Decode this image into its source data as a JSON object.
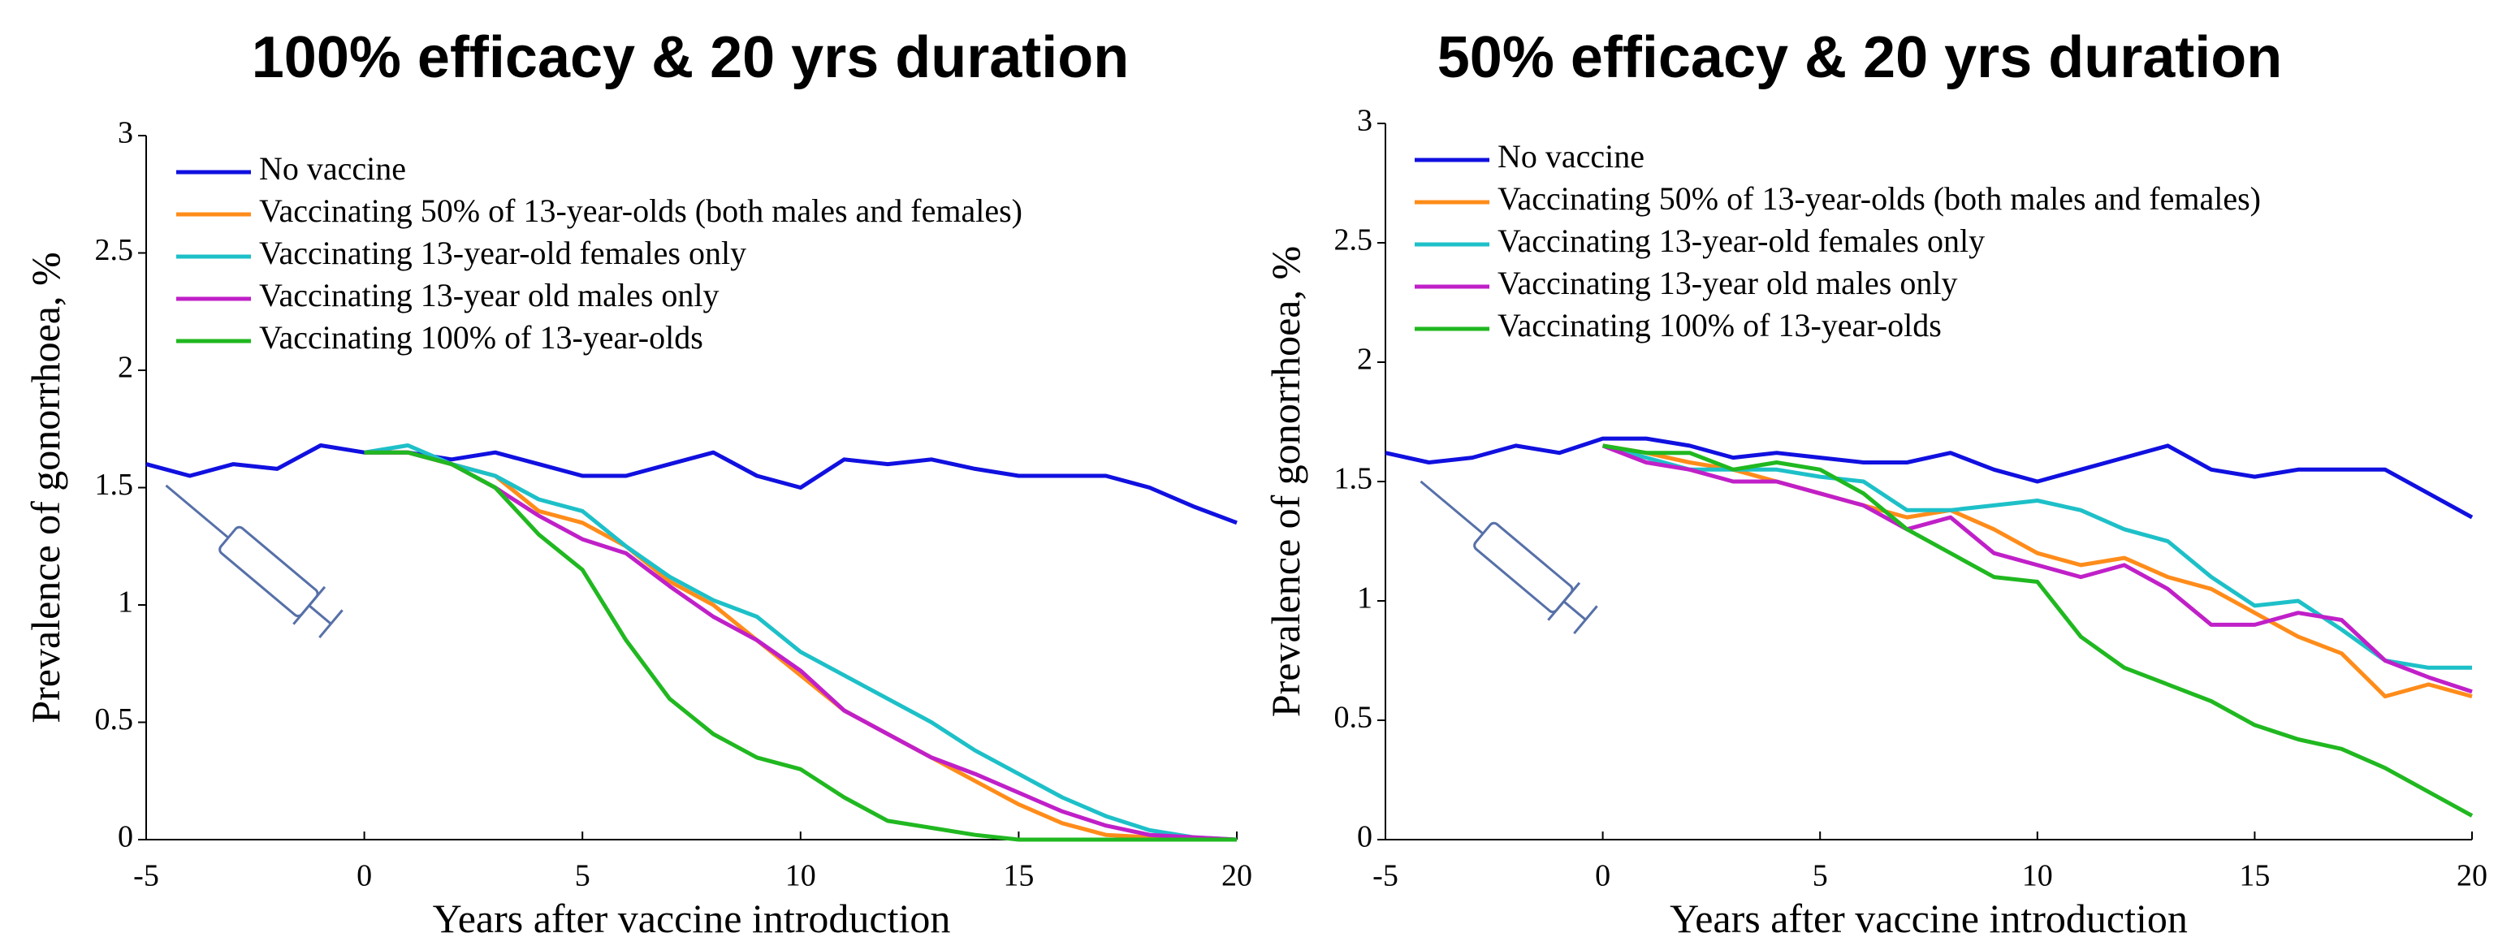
{
  "chart_data": [
    {
      "type": "line",
      "title": "100% efficacy & 20 yrs duration",
      "x_label": "Years after vaccine introduction",
      "y_label": "Prevalence of gonorrhoea, %",
      "x": [
        -5,
        -4,
        -3,
        -2,
        -1,
        0,
        1,
        2,
        3,
        4,
        5,
        6,
        7,
        8,
        9,
        10,
        11,
        12,
        13,
        14,
        15,
        16,
        17,
        18,
        19,
        20
      ],
      "xlim": [
        -5,
        20
      ],
      "xticks": [
        -5,
        0,
        5,
        10,
        15,
        20
      ],
      "ylim": [
        0,
        3
      ],
      "yticks": [
        0,
        0.5,
        1,
        1.5,
        2,
        2.5,
        3
      ],
      "legend": "upper left",
      "series": [
        {
          "name": "No vaccine",
          "color": "#1010e0",
          "values": [
            1.6,
            1.55,
            1.6,
            1.58,
            1.68,
            1.65,
            1.65,
            1.62,
            1.65,
            1.6,
            1.55,
            1.55,
            1.6,
            1.65,
            1.55,
            1.5,
            1.62,
            1.6,
            1.62,
            1.58,
            1.55,
            1.55,
            1.55,
            1.5,
            1.42,
            1.35
          ]
        },
        {
          "name": "Vaccinating 50% of 13-year-olds (both males and females)",
          "color": "#ff8c1a",
          "values": [
            null,
            null,
            null,
            null,
            null,
            1.65,
            1.65,
            1.6,
            1.55,
            1.4,
            1.35,
            1.25,
            1.1,
            1.0,
            0.85,
            0.7,
            0.55,
            0.45,
            0.35,
            0.25,
            0.15,
            0.07,
            0.02,
            0.01,
            0,
            0
          ]
        },
        {
          "name": "Vaccinating 13-year-old females only",
          "color": "#1ec0c8",
          "values": [
            null,
            null,
            null,
            null,
            null,
            1.65,
            1.68,
            1.6,
            1.55,
            1.45,
            1.4,
            1.25,
            1.12,
            1.02,
            0.95,
            0.8,
            0.7,
            0.6,
            0.5,
            0.38,
            0.28,
            0.18,
            0.1,
            0.04,
            0.01,
            0
          ]
        },
        {
          "name": "Vaccinating 13-year old males only",
          "color": "#c020c8",
          "values": [
            null,
            null,
            null,
            null,
            null,
            1.65,
            1.65,
            1.6,
            1.5,
            1.38,
            1.28,
            1.22,
            1.08,
            0.95,
            0.85,
            0.72,
            0.55,
            0.45,
            0.35,
            0.28,
            0.2,
            0.12,
            0.06,
            0.02,
            0.01,
            0
          ]
        },
        {
          "name": "Vaccinating 100% of 13-year-olds",
          "color": "#20b820",
          "values": [
            null,
            null,
            null,
            null,
            null,
            1.65,
            1.65,
            1.6,
            1.5,
            1.3,
            1.15,
            0.85,
            0.6,
            0.45,
            0.35,
            0.3,
            0.18,
            0.08,
            0.05,
            0.02,
            0,
            0,
            0,
            0,
            0,
            0
          ]
        }
      ]
    },
    {
      "type": "line",
      "title": "50% efficacy & 20 yrs duration",
      "x_label": "Years after vaccine introduction",
      "y_label": "Prevalence of gonorrhoea, %",
      "x": [
        -5,
        -4,
        -3,
        -2,
        -1,
        0,
        1,
        2,
        3,
        4,
        5,
        6,
        7,
        8,
        9,
        10,
        11,
        12,
        13,
        14,
        15,
        16,
        17,
        18,
        19,
        20
      ],
      "xlim": [
        -5,
        20
      ],
      "xticks": [
        -5,
        0,
        5,
        10,
        15,
        20
      ],
      "ylim": [
        0,
        3
      ],
      "yticks": [
        0,
        0.5,
        1,
        1.5,
        2,
        2.5,
        3
      ],
      "legend": "upper left",
      "series": [
        {
          "name": "No vaccine",
          "color": "#1010e0",
          "values": [
            1.62,
            1.58,
            1.6,
            1.65,
            1.62,
            1.68,
            1.68,
            1.65,
            1.6,
            1.62,
            1.6,
            1.58,
            1.58,
            1.62,
            1.55,
            1.5,
            1.55,
            1.6,
            1.65,
            1.55,
            1.52,
            1.55,
            1.55,
            1.55,
            1.45,
            1.35
          ]
        },
        {
          "name": "Vaccinating 50% of 13-year-olds (both males and females)",
          "color": "#ff8c1a",
          "values": [
            null,
            null,
            null,
            null,
            null,
            1.65,
            1.62,
            1.58,
            1.55,
            1.5,
            1.45,
            1.4,
            1.35,
            1.38,
            1.3,
            1.2,
            1.15,
            1.18,
            1.1,
            1.05,
            0.95,
            0.85,
            0.78,
            0.6,
            0.65,
            0.6
          ]
        },
        {
          "name": "Vaccinating 13-year-old females only",
          "color": "#1ec0c8",
          "values": [
            null,
            null,
            null,
            null,
            null,
            1.65,
            1.6,
            1.55,
            1.55,
            1.55,
            1.52,
            1.5,
            1.38,
            1.38,
            1.4,
            1.42,
            1.38,
            1.3,
            1.25,
            1.1,
            0.98,
            1.0,
            0.88,
            0.75,
            0.72,
            0.72
          ]
        },
        {
          "name": "Vaccinating 13-year old males only",
          "color": "#c020c8",
          "values": [
            null,
            null,
            null,
            null,
            null,
            1.65,
            1.58,
            1.55,
            1.5,
            1.5,
            1.45,
            1.4,
            1.3,
            1.35,
            1.2,
            1.15,
            1.1,
            1.15,
            1.05,
            0.9,
            0.9,
            0.95,
            0.92,
            0.75,
            0.68,
            0.62
          ]
        },
        {
          "name": "Vaccinating 100% of 13-year-olds",
          "color": "#20b820",
          "values": [
            null,
            null,
            null,
            null,
            null,
            1.65,
            1.62,
            1.62,
            1.55,
            1.58,
            1.55,
            1.45,
            1.3,
            1.2,
            1.1,
            1.08,
            0.85,
            0.72,
            0.65,
            0.58,
            0.48,
            0.42,
            0.38,
            0.3,
            0.2,
            0.1
          ]
        }
      ]
    }
  ]
}
